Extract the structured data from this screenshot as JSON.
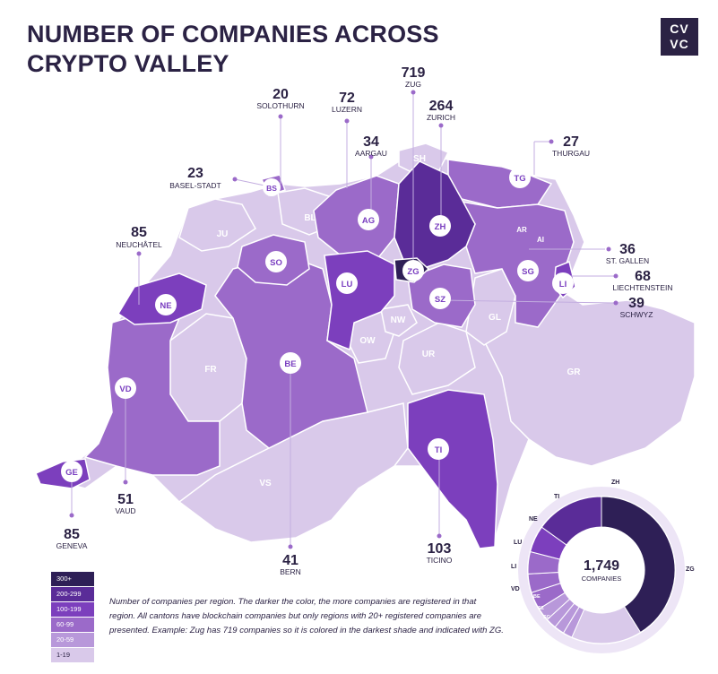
{
  "title_lines": [
    "NUMBER OF COMPANIES ACROSS",
    "CRYPTO VALLEY"
  ],
  "logo": {
    "line1": "CV",
    "line2": "VC"
  },
  "colors": {
    "c300": "#2e1f56",
    "c200": "#5a2c98",
    "c100": "#7c3fbd",
    "c60": "#9b6ac9",
    "c20": "#b898da",
    "c1": "#d9c9ea",
    "accent": "#7a3fc0"
  },
  "regions": [
    {
      "code": "ZG",
      "name": "ZUG",
      "count": "719"
    },
    {
      "code": "ZH",
      "name": "ZURICH",
      "count": "264"
    },
    {
      "code": "TI",
      "name": "TICINO",
      "count": "103"
    },
    {
      "code": "NE",
      "name": "NEUCHÂTEL",
      "count": "85"
    },
    {
      "code": "GE",
      "name": "GENEVA",
      "count": "85"
    },
    {
      "code": "LU",
      "name": "LUZERN",
      "count": "72"
    },
    {
      "code": "LI",
      "name": "LIECHTENSTEIN",
      "count": "68"
    },
    {
      "code": "VD",
      "name": "VAUD",
      "count": "51"
    },
    {
      "code": "BE",
      "name": "BERN",
      "count": "41"
    },
    {
      "code": "SZ",
      "name": "SCHWYZ",
      "count": "39"
    },
    {
      "code": "SG",
      "name": "ST. GALLEN",
      "count": "36"
    },
    {
      "code": "AG",
      "name": "AARGAU",
      "count": "34"
    },
    {
      "code": "TG",
      "name": "THURGAU",
      "count": "27"
    },
    {
      "code": "BS",
      "name": "BASEL-STADT",
      "count": "23"
    },
    {
      "code": "SO",
      "name": "SOLOTHURN",
      "count": "20"
    }
  ],
  "small_cantons": [
    "SH",
    "BL",
    "JU",
    "AR",
    "AI",
    "GL",
    "NW",
    "OW",
    "UR",
    "FR",
    "GR",
    "VS"
  ],
  "legend": [
    "300+",
    "200-299",
    "100-199",
    "60-99",
    "20-59",
    "1-19"
  ],
  "note": "Number of companies per region. The darker the color, the more companies are registered in that region. All cantons have blockchain companies but only regions with 20+ registered companies are presented. Example: Zug has 719 companies so it is colored in the darkest shade and indicated with ZG.",
  "donut": {
    "total": "1,749",
    "total_label": "COMPANIES",
    "labels": [
      "ZH",
      "TI",
      "NE",
      "LU",
      "LI",
      "VD",
      "BE",
      "SZ",
      "SG",
      "ZG"
    ]
  }
}
